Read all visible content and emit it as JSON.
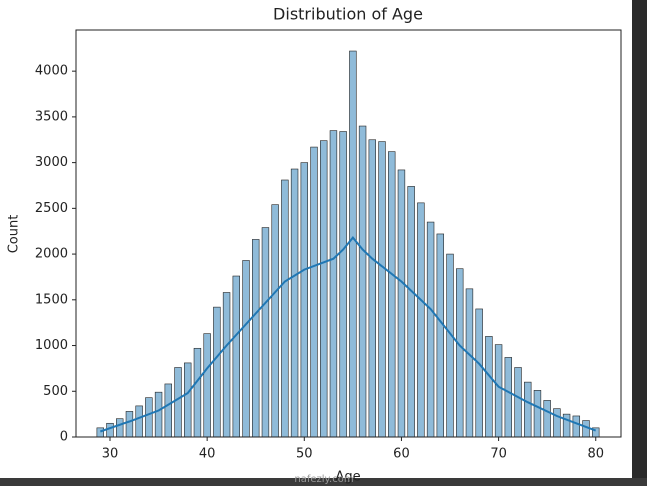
{
  "chart_data": {
    "type": "bar",
    "title": "Distribution of Age",
    "x_label": "Age",
    "y_label": "Count",
    "x": [
      29,
      30,
      31,
      32,
      33,
      34,
      35,
      36,
      37,
      38,
      39,
      40,
      41,
      42,
      43,
      44,
      45,
      46,
      47,
      48,
      49,
      50,
      51,
      52,
      53,
      54,
      55,
      56,
      57,
      58,
      59,
      60,
      61,
      62,
      63,
      64,
      65,
      66,
      67,
      68,
      69,
      70,
      71,
      72,
      73,
      74,
      75,
      76,
      77,
      78,
      79,
      80
    ],
    "values": [
      100,
      150,
      200,
      280,
      340,
      430,
      490,
      580,
      760,
      810,
      970,
      1130,
      1420,
      1580,
      1760,
      1930,
      2160,
      2290,
      2540,
      2810,
      2930,
      3000,
      3170,
      3240,
      3350,
      3340,
      4220,
      3400,
      3250,
      3230,
      3120,
      2920,
      2740,
      2560,
      2350,
      2220,
      2000,
      1840,
      1620,
      1400,
      1100,
      1010,
      870,
      760,
      600,
      510,
      400,
      310,
      250,
      230,
      180,
      100
    ],
    "color": "#1f77b4",
    "kde": {
      "x": [
        29,
        32,
        35,
        38,
        40,
        42,
        45,
        48,
        50,
        53,
        54,
        55,
        56,
        57,
        60,
        63,
        66,
        68,
        70,
        73,
        76,
        78,
        80
      ],
      "values": [
        60,
        170,
        290,
        480,
        750,
        1000,
        1350,
        1700,
        1830,
        1950,
        2050,
        2180,
        2050,
        1950,
        1700,
        1400,
        1000,
        800,
        550,
        380,
        230,
        150,
        70
      ],
      "color": "#1f77b4"
    },
    "xlim": [
      26.5,
      82.6
    ],
    "ylim": [
      0,
      4450
    ],
    "xticks": [
      30,
      40,
      50,
      60,
      70,
      80
    ],
    "yticks": [
      0,
      500,
      1000,
      1500,
      2000,
      2500,
      3000,
      3500,
      4000
    ],
    "grid": false
  },
  "watermark": "nafezly.com"
}
